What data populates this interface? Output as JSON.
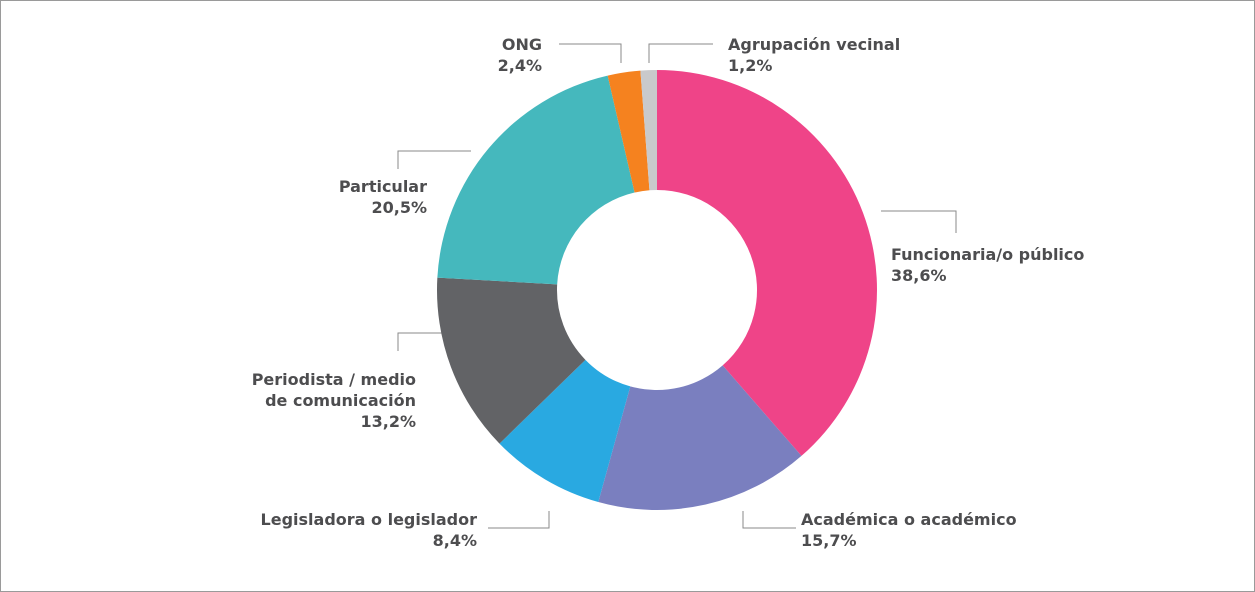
{
  "chart_data": {
    "type": "donut",
    "categories": [
      "Funcionaria/o público",
      "Académica o académico",
      "Legisladora o legislador",
      "Periodista / medio de comunicación",
      "Particular",
      "ONG",
      "Agrupación vecinal"
    ],
    "values": [
      38.6,
      15.7,
      8.4,
      13.2,
      20.5,
      2.4,
      1.2
    ],
    "value_labels": [
      "38,6%",
      "15,7%",
      "8,4%",
      "13,2%",
      "20,5%",
      "2,4%",
      "1,2%"
    ],
    "colors": [
      "#ef4488",
      "#7a7fbf",
      "#29a9e1",
      "#626366",
      "#45b8bd",
      "#f5821f",
      "#c9c9cb"
    ]
  }
}
